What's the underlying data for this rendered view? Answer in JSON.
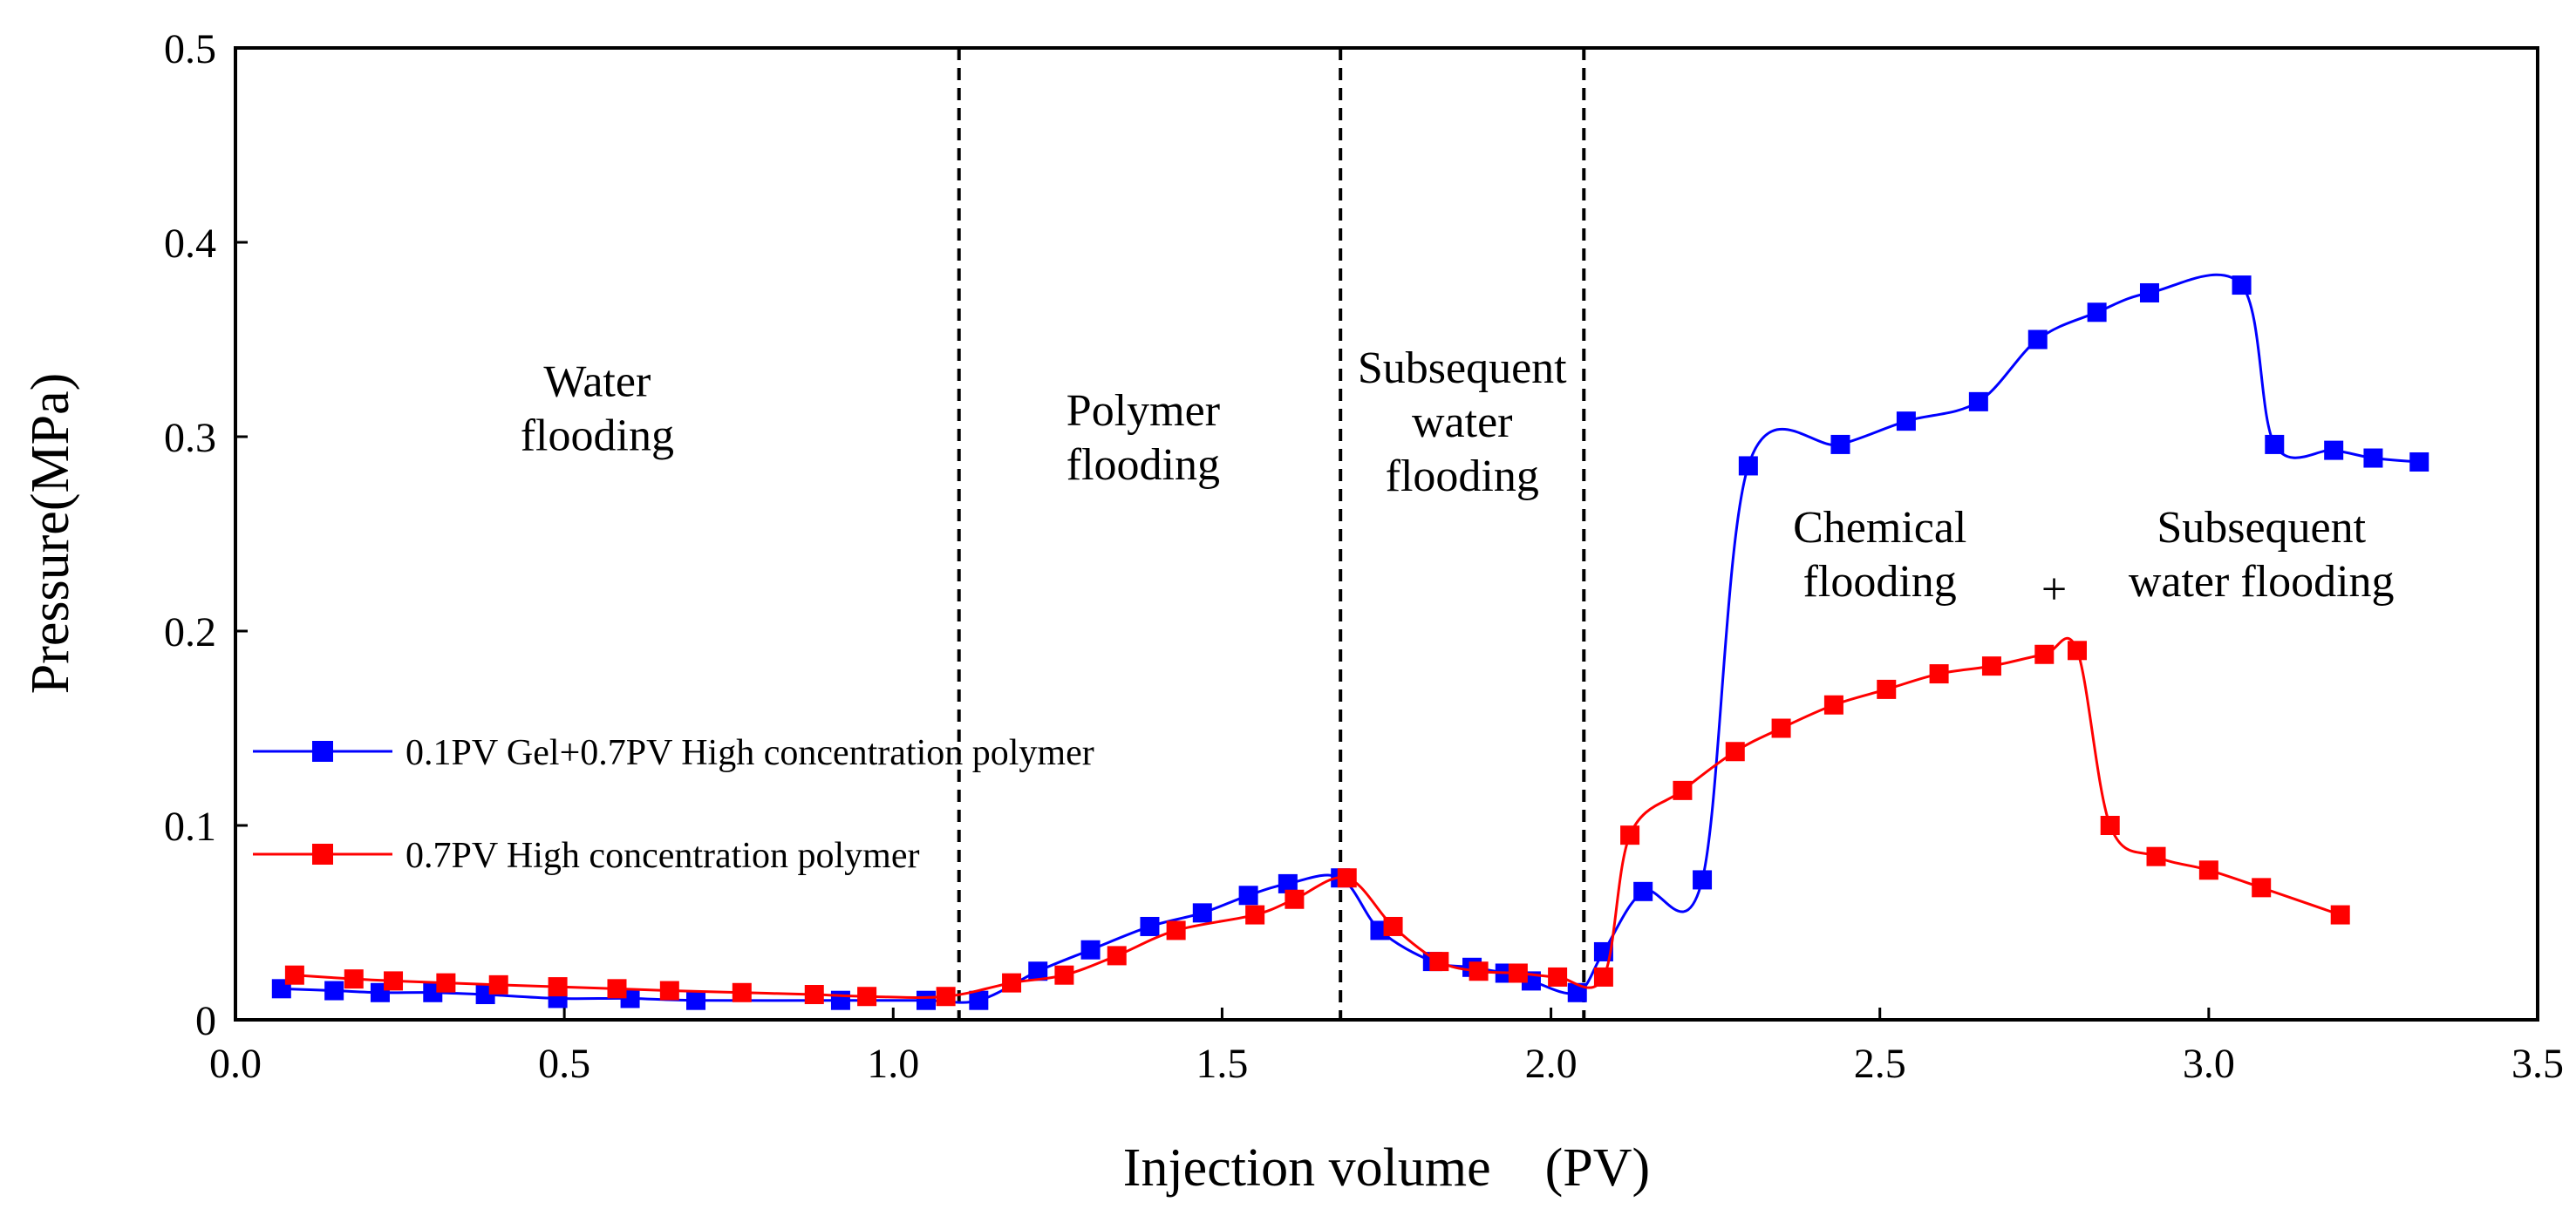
{
  "chart_data": {
    "type": "line",
    "title": "",
    "xlabel": "Injection volume　(PV)",
    "ylabel": "Pressure(MPa)",
    "xlim": [
      0.0,
      3.5
    ],
    "ylim": [
      0,
      0.5
    ],
    "x_ticks": [
      "0.0",
      "0.5",
      "1.0",
      "1.5",
      "2.0",
      "2.5",
      "3.0",
      "3.5"
    ],
    "y_ticks": [
      "0",
      "0.1",
      "0.2",
      "0.3",
      "0.4",
      "0.5"
    ],
    "x_tick_values": [
      0.0,
      0.5,
      1.0,
      1.5,
      2.0,
      2.5,
      3.0,
      3.5
    ],
    "y_tick_values": [
      0,
      0.1,
      0.2,
      0.3,
      0.4,
      0.5
    ],
    "grid": false,
    "legend_position": "middle-left",
    "series": [
      {
        "name": "0.1PV Gel+0.7PV High concentration polymer",
        "color": "#0000ff",
        "marker": "square",
        "x": [
          0.07,
          0.15,
          0.22,
          0.3,
          0.38,
          0.49,
          0.6,
          0.7,
          0.92,
          1.05,
          1.13,
          1.22,
          1.3,
          1.39,
          1.47,
          1.54,
          1.6,
          1.68,
          1.74,
          1.82,
          1.88,
          1.93,
          1.97,
          2.04,
          2.08,
          2.14,
          2.23,
          2.3,
          2.44,
          2.54,
          2.65,
          2.74,
          2.83,
          2.91,
          3.05,
          3.1,
          3.19,
          3.25,
          3.32
        ],
        "y": [
          0.016,
          0.015,
          0.014,
          0.014,
          0.013,
          0.011,
          0.011,
          0.01,
          0.01,
          0.01,
          0.01,
          0.025,
          0.036,
          0.048,
          0.055,
          0.064,
          0.07,
          0.073,
          0.046,
          0.03,
          0.027,
          0.024,
          0.02,
          0.014,
          0.035,
          0.066,
          0.072,
          0.285,
          0.296,
          0.308,
          0.318,
          0.35,
          0.364,
          0.374,
          0.378,
          0.296,
          0.293,
          0.289,
          0.287
        ]
      },
      {
        "name": "0.7PV High concentration polymer",
        "color": "#ff0000",
        "marker": "square",
        "x": [
          0.09,
          0.18,
          0.24,
          0.32,
          0.4,
          0.49,
          0.58,
          0.66,
          0.77,
          0.88,
          0.96,
          1.08,
          1.18,
          1.26,
          1.34,
          1.43,
          1.55,
          1.61,
          1.69,
          1.76,
          1.83,
          1.89,
          1.95,
          2.01,
          2.08,
          2.12,
          2.2,
          2.28,
          2.35,
          2.43,
          2.51,
          2.59,
          2.67,
          2.75,
          2.8,
          2.85,
          2.92,
          3.0,
          3.08,
          3.2
        ],
        "y": [
          0.023,
          0.021,
          0.02,
          0.019,
          0.018,
          0.017,
          0.016,
          0.015,
          0.014,
          0.013,
          0.012,
          0.012,
          0.019,
          0.023,
          0.033,
          0.046,
          0.054,
          0.062,
          0.073,
          0.048,
          0.03,
          0.025,
          0.024,
          0.022,
          0.022,
          0.095,
          0.118,
          0.138,
          0.15,
          0.162,
          0.17,
          0.178,
          0.182,
          0.188,
          0.19,
          0.1,
          0.084,
          0.077,
          0.068,
          0.054
        ]
      }
    ],
    "dividers": [
      1.1,
      1.68,
      2.05
    ],
    "annotations": [
      {
        "lines": [
          "Water",
          "flooding"
        ],
        "x": 0.55,
        "y": 0.315
      },
      {
        "lines": [
          "Polymer",
          "flooding"
        ],
        "x": 1.38,
        "y": 0.3
      },
      {
        "lines": [
          "Subsequent",
          "water",
          "flooding"
        ],
        "x": 1.865,
        "y": 0.308
      },
      {
        "lines": [
          "Chemical",
          "flooding"
        ],
        "x": 2.5,
        "y": 0.24
      },
      {
        "lines": [
          "+"
        ],
        "x": 2.765,
        "y": 0.222
      },
      {
        "lines": [
          "Subsequent",
          "water flooding"
        ],
        "x": 3.08,
        "y": 0.24
      }
    ]
  }
}
